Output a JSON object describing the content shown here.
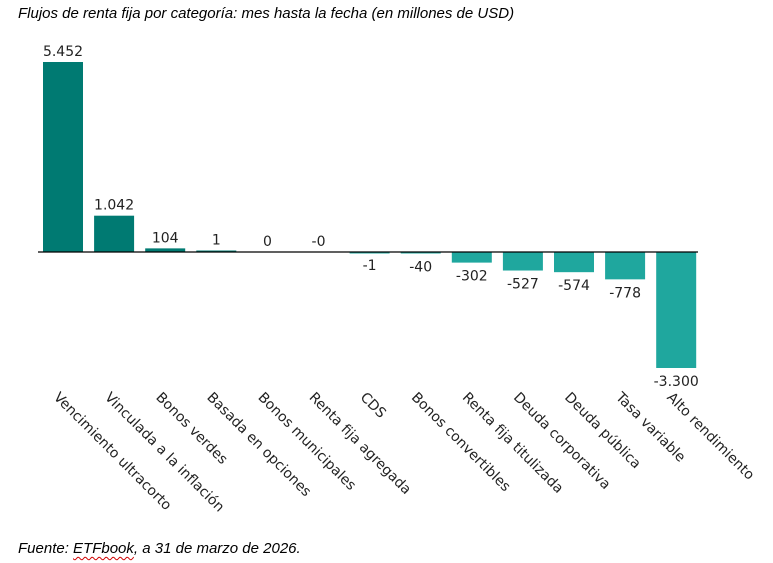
{
  "chart_data": {
    "type": "bar",
    "title": "Flujos de renta fija por categoría: mes hasta la fecha (en millones de USD)",
    "xlabel": "",
    "ylabel": "",
    "categories": [
      "Vencimiento ultracorto",
      "Vinculada a la inflación",
      "Bonos verdes",
      "Basada en opciones",
      "Bonos municipales",
      "Renta fija agregada",
      "CDS",
      "Bonos convertibles",
      "Renta fija titulizada",
      "Deuda corporativa",
      "Deuda pública",
      "Tasa variable",
      "Alto rendimiento"
    ],
    "values": [
      5452,
      1042,
      104,
      1,
      0,
      -0.1,
      -1,
      -40,
      -302,
      -527,
      -574,
      -778,
      -3300
    ],
    "value_labels": [
      "5.452",
      "1.042",
      "104",
      "1",
      "0",
      "-0",
      "-1",
      "-40",
      "-302",
      "-527",
      "-574",
      "-778",
      "-3.300"
    ],
    "ylim": [
      -3300,
      5452
    ],
    "grid": false,
    "colors": {
      "positive": "#007a72",
      "negative": "#1fa79e",
      "axis": "#000000"
    }
  },
  "source": {
    "prefix": "Fuente: ",
    "brand": "ETFbook",
    "suffix": ", a 31 de marzo de 2026."
  }
}
